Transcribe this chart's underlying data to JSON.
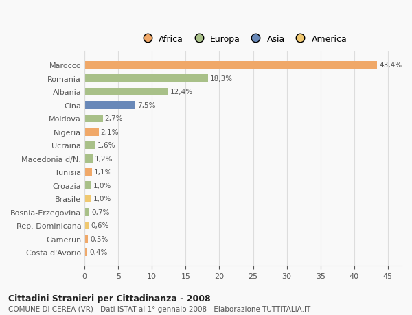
{
  "categories": [
    "Costa d'Avorio",
    "Camerun",
    "Rep. Dominicana",
    "Bosnia-Erzegovina",
    "Brasile",
    "Croazia",
    "Tunisia",
    "Macedonia d/N.",
    "Ucraina",
    "Nigeria",
    "Moldova",
    "Cina",
    "Albania",
    "Romania",
    "Marocco"
  ],
  "values": [
    0.4,
    0.5,
    0.6,
    0.7,
    1.0,
    1.0,
    1.1,
    1.2,
    1.6,
    2.1,
    2.7,
    7.5,
    12.4,
    18.3,
    43.4
  ],
  "labels": [
    "0,4%",
    "0,5%",
    "0,6%",
    "0,7%",
    "1,0%",
    "1,0%",
    "1,1%",
    "1,2%",
    "1,6%",
    "2,1%",
    "2,7%",
    "7,5%",
    "12,4%",
    "18,3%",
    "43,4%"
  ],
  "colors": [
    "#f0a868",
    "#f0a868",
    "#f0c870",
    "#a8c088",
    "#f0c870",
    "#a8c088",
    "#f0a868",
    "#a8c088",
    "#a8c088",
    "#f0a868",
    "#a8c088",
    "#6888b8",
    "#a8c088",
    "#a8c088",
    "#f0a868"
  ],
  "continent_labels": [
    "Africa",
    "Europa",
    "Asia",
    "America"
  ],
  "continent_colors": [
    "#f0a868",
    "#a8c088",
    "#6888b8",
    "#f0c870"
  ],
  "xlim": [
    0,
    47
  ],
  "xticks": [
    0,
    5,
    10,
    15,
    20,
    25,
    30,
    35,
    40,
    45
  ],
  "title": "Cittadini Stranieri per Cittadinanza - 2008",
  "subtitle": "COMUNE DI CEREA (VR) - Dati ISTAT al 1° gennaio 2008 - Elaborazione TUTTITALIA.IT",
  "bg_color": "#f9f9f9",
  "bar_height": 0.6,
  "grid_color": "#dddddd",
  "text_color": "#555555"
}
